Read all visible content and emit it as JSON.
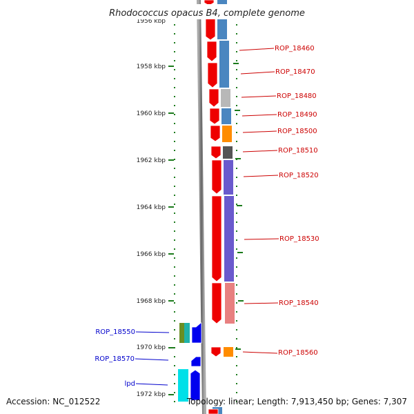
{
  "title": "Rhodococcus opacus B4, complete genome",
  "accession": "Accession: NC_012522",
  "topology": "Topology: linear; Length: 7,913,450 bp; Genes: 7,307",
  "kbp_labels": [
    "1956 kbp",
    "1958 kbp",
    "1960 kbp",
    "1962 kbp",
    "1964 kbp",
    "1966 kbp",
    "1968 kbp",
    "1970 kbp",
    "1972 kbp"
  ],
  "forward_label_color": "#cc0000",
  "reverse_label_color": "#0000cc",
  "forward_genes": [
    "ROP_18460",
    "ROP_18470",
    "ROP_18480",
    "ROP_18490",
    "ROP_18500",
    "ROP_18510",
    "ROP_18520",
    "ROP_18530",
    "ROP_18540",
    "ROP_18560"
  ],
  "reverse_genes": [
    "ROP_18550",
    "ROP_18570",
    "lpd"
  ],
  "colors": {
    "forward_arrow": "#ee0000",
    "reverse_arrow": "#0000ee",
    "backbone": "#777777",
    "ticks": "#1a7a1a",
    "cog_blue": "#4a86c0",
    "cog_grey": "#b8b8b8",
    "cog_orange": "#ff8c00",
    "cog_dark": "#555555",
    "cog_purple": "#6a5acd",
    "cog_pink": "#e88080",
    "cog_cyan": "#00e0e8",
    "cog_olive": "#6b8e23",
    "cog_teal": "#20b2aa"
  }
}
